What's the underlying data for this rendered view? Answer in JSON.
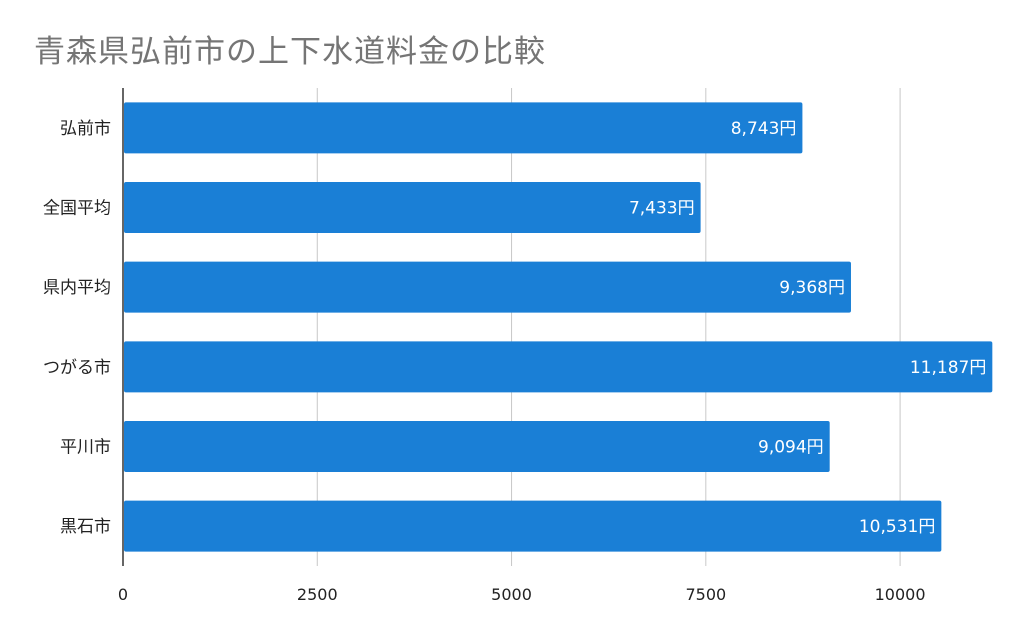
{
  "chart_data": {
    "type": "bar",
    "orientation": "horizontal",
    "title": "青森県弘前市の上下水道料金の比較",
    "categories": [
      "弘前市",
      "全国平均",
      "県内平均",
      "つがる市",
      "平川市",
      "黒石市"
    ],
    "values": [
      8743,
      7433,
      9368,
      11187,
      9094,
      10531
    ],
    "data_labels": [
      "8,743円",
      "7,433円",
      "9,368円",
      "11,187円",
      "9,094円",
      "10,531円"
    ],
    "xlim": [
      0,
      11350
    ],
    "x_ticks": [
      0,
      2500,
      5000,
      7500,
      10000
    ],
    "x_tick_labels": [
      "0",
      "2500",
      "5000",
      "7500",
      "10000"
    ],
    "xlabel": "",
    "ylabel": "",
    "grid": "vertical",
    "legend": "none",
    "bar_color": "#1a7fd6"
  }
}
